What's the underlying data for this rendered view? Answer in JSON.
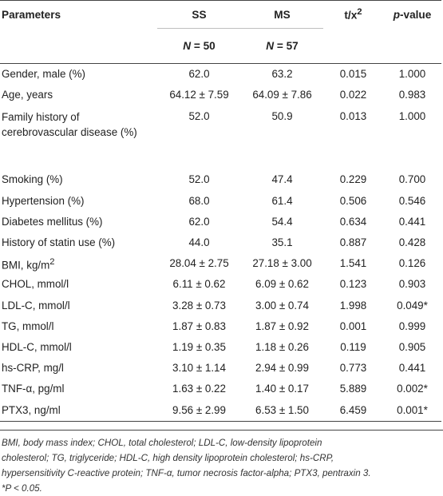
{
  "table": {
    "headers": {
      "parameters": "Parameters",
      "ss": "SS",
      "ms": "MS",
      "t": "t/x",
      "t_sup": "2",
      "p": "p",
      "p_suffix": "-value",
      "n_ss_label": "N",
      "n_ss_value": " = 50",
      "n_ms_label": "N",
      "n_ms_value": " = 57"
    },
    "rows": [
      {
        "param": "Gender, male (%)",
        "ss": "62.0",
        "ms": "63.2",
        "t": "0.015",
        "p": "1.000"
      },
      {
        "param": "Age, years",
        "ss": "64.12 ± 7.59",
        "ms": "64.09 ± 7.86",
        "t": "0.022",
        "p": "0.983"
      },
      {
        "param": "Family history of cerebrovascular disease (%)",
        "ss": "52.0",
        "ms": "50.9",
        "t": "0.013",
        "p": "1.000"
      },
      {
        "param": "Smoking (%)",
        "ss": "52.0",
        "ms": "47.4",
        "t": "0.229",
        "p": "0.700"
      },
      {
        "param": "Hypertension (%)",
        "ss": "68.0",
        "ms": "61.4",
        "t": "0.506",
        "p": "0.546"
      },
      {
        "param": "Diabetes mellitus (%)",
        "ss": "62.0",
        "ms": "54.4",
        "t": "0.634",
        "p": "0.441"
      },
      {
        "param": "History of statin use (%)",
        "ss": "44.0",
        "ms": "35.1",
        "t": "0.887",
        "p": "0.428"
      },
      {
        "param": "BMI, kg/m",
        "param_sup": "2",
        "ss": "28.04 ± 2.75",
        "ms": "27.18 ± 3.00",
        "t": "1.541",
        "p": "0.126"
      },
      {
        "param": "CHOL, mmol/l",
        "ss": "6.11 ± 0.62",
        "ms": "6.09 ± 0.62",
        "t": "0.123",
        "p": "0.903"
      },
      {
        "param": "LDL-C, mmol/l",
        "ss": "3.28 ± 0.73",
        "ms": "3.00 ± 0.74",
        "t": "1.998",
        "p": "0.049*"
      },
      {
        "param": "TG, mmol/l",
        "ss": "1.87 ± 0.83",
        "ms": "1.87 ± 0.92",
        "t": "0.001",
        "p": "0.999"
      },
      {
        "param": "HDL-C, mmol/l",
        "ss": "1.19 ± 0.35",
        "ms": "1.18 ± 0.26",
        "t": "0.119",
        "p": "0.905"
      },
      {
        "param": "hs-CRP, mg/l",
        "ss": "3.10 ± 1.14",
        "ms": "2.94 ± 0.99",
        "t": "0.773",
        "p": "0.441"
      },
      {
        "param": "TNF-α, pg/ml",
        "ss": "1.63 ± 0.22",
        "ms": "1.40 ± 0.17",
        "t": "5.889",
        "p": "0.002*"
      },
      {
        "param": "PTX3, ng/ml",
        "ss": "9.56 ± 2.99",
        "ms": "6.53 ± 1.50",
        "t": "6.459",
        "p": "0.001*"
      }
    ]
  },
  "footnote": {
    "line1": "BMI, body mass index; CHOL, total cholesterol; LDL-C, low-density lipoprotein",
    "line2": "cholesterol; TG, triglyceride; HDL-C, high density lipoprotein cholesterol; hs-CRP,",
    "line3": "hypersensitivity C-reactive protein; TNF-α, tumor necrosis factor-alpha; PTX3, pentraxin 3.",
    "line4": "*P < 0.05."
  }
}
